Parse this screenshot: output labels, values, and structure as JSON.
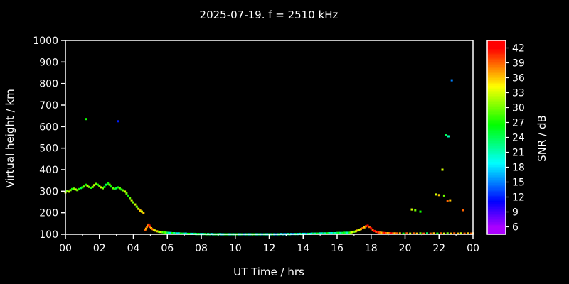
{
  "colors": {
    "background": "#000000",
    "text": "#ffffff",
    "frame": "#ffffff"
  },
  "chart_data": {
    "type": "scatter",
    "title": "2025-07-19. f = 2510 kHz",
    "xlabel": "UT Time / hrs",
    "ylabel": "Virtual height / km",
    "colorbar_label": "SNR / dB",
    "xlim": [
      0,
      24
    ],
    "ylim": [
      100,
      1000
    ],
    "grid": false,
    "legend": "colorbar-right",
    "xticks": {
      "values": [
        0,
        2,
        4,
        6,
        8,
        10,
        12,
        14,
        16,
        18,
        20,
        22,
        24
      ],
      "labels": [
        "00",
        "02",
        "04",
        "06",
        "08",
        "10",
        "12",
        "14",
        "16",
        "18",
        "20",
        "22",
        "00"
      ]
    },
    "yticks": [
      100,
      200,
      300,
      400,
      500,
      600,
      700,
      800,
      900,
      1000
    ],
    "colorbar_ticks": [
      6,
      9,
      12,
      15,
      18,
      21,
      24,
      27,
      30,
      33,
      36,
      39,
      42
    ],
    "colorbar_range": [
      4.5,
      43.5
    ],
    "snr_domain": [
      6,
      42
    ],
    "points": [
      [
        0.0,
        295,
        33
      ],
      [
        0.1,
        300,
        30
      ],
      [
        0.2,
        298,
        33
      ],
      [
        0.3,
        305,
        30
      ],
      [
        0.4,
        310,
        27
      ],
      [
        0.5,
        312,
        30
      ],
      [
        0.6,
        308,
        33
      ],
      [
        0.7,
        305,
        30
      ],
      [
        0.8,
        310,
        27
      ],
      [
        0.9,
        315,
        24
      ],
      [
        1.0,
        318,
        27
      ],
      [
        1.1,
        322,
        30
      ],
      [
        1.2,
        330,
        27
      ],
      [
        1.3,
        326,
        33
      ],
      [
        1.4,
        320,
        30
      ],
      [
        1.5,
        316,
        27
      ],
      [
        1.6,
        320,
        30
      ],
      [
        1.7,
        328,
        33
      ],
      [
        1.8,
        334,
        30
      ],
      [
        1.9,
        330,
        27
      ],
      [
        2.0,
        324,
        30
      ],
      [
        2.1,
        318,
        33
      ],
      [
        2.2,
        314,
        30
      ],
      [
        2.3,
        320,
        27
      ],
      [
        2.4,
        330,
        24
      ],
      [
        2.5,
        336,
        27
      ],
      [
        2.6,
        330,
        30
      ],
      [
        2.7,
        322,
        27
      ],
      [
        2.8,
        314,
        30
      ],
      [
        2.9,
        310,
        27
      ],
      [
        3.0,
        314,
        24
      ],
      [
        3.1,
        318,
        27
      ],
      [
        3.2,
        314,
        30
      ],
      [
        3.3,
        308,
        27
      ],
      [
        3.4,
        304,
        30
      ],
      [
        3.5,
        298,
        33
      ],
      [
        3.6,
        290,
        30
      ],
      [
        3.7,
        280,
        27
      ],
      [
        3.8,
        268,
        30
      ],
      [
        3.9,
        258,
        33
      ],
      [
        4.0,
        248,
        30
      ],
      [
        4.1,
        238,
        33
      ],
      [
        4.2,
        228,
        30
      ],
      [
        4.3,
        218,
        33
      ],
      [
        4.4,
        210,
        36
      ],
      [
        4.5,
        205,
        33
      ],
      [
        4.6,
        200,
        36
      ],
      [
        1.2,
        635,
        27
      ],
      [
        3.1,
        625,
        12
      ],
      [
        4.7,
        118,
        39
      ],
      [
        4.75,
        126,
        36
      ],
      [
        4.8,
        134,
        39
      ],
      [
        4.85,
        140,
        36
      ],
      [
        4.9,
        145,
        39
      ],
      [
        4.95,
        140,
        42
      ],
      [
        5.0,
        134,
        39
      ],
      [
        5.05,
        128,
        36
      ],
      [
        5.1,
        124,
        39
      ],
      [
        5.2,
        120,
        36
      ],
      [
        5.3,
        117,
        33
      ],
      [
        5.4,
        114,
        36
      ],
      [
        5.5,
        112,
        30
      ],
      [
        5.6,
        111,
        33
      ],
      [
        5.7,
        110,
        30
      ],
      [
        5.8,
        109,
        27
      ],
      [
        5.9,
        108,
        30
      ],
      [
        6.0,
        107,
        24
      ],
      [
        6.1,
        106,
        21
      ],
      [
        6.2,
        106,
        18
      ],
      [
        6.3,
        105,
        27
      ],
      [
        6.4,
        105,
        21
      ],
      [
        6.5,
        104,
        24
      ],
      [
        6.6,
        104,
        18
      ],
      [
        6.7,
        104,
        21
      ],
      [
        6.8,
        103,
        27
      ],
      [
        6.9,
        103,
        24
      ],
      [
        7.0,
        103,
        21
      ],
      [
        7.1,
        103,
        18
      ],
      [
        7.2,
        102,
        24
      ],
      [
        7.3,
        102,
        27
      ],
      [
        7.4,
        102,
        21
      ],
      [
        7.5,
        102,
        18
      ],
      [
        7.6,
        102,
        24
      ],
      [
        7.7,
        101,
        21
      ],
      [
        7.8,
        101,
        27
      ],
      [
        7.9,
        101,
        24
      ],
      [
        8.0,
        101,
        18
      ],
      [
        8.1,
        101,
        21
      ],
      [
        8.2,
        101,
        24
      ],
      [
        8.3,
        100,
        27
      ],
      [
        8.4,
        101,
        21
      ],
      [
        8.5,
        100,
        24
      ],
      [
        8.6,
        101,
        18
      ],
      [
        8.7,
        100,
        21
      ],
      [
        8.8,
        100,
        24
      ],
      [
        8.9,
        100,
        27
      ],
      [
        9.0,
        100,
        21
      ],
      [
        9.1,
        101,
        24
      ],
      [
        9.2,
        100,
        18
      ],
      [
        9.3,
        100,
        21
      ],
      [
        9.4,
        100,
        24
      ],
      [
        9.5,
        100,
        27
      ],
      [
        9.6,
        100,
        21
      ],
      [
        9.7,
        100,
        18
      ],
      [
        9.8,
        100,
        24
      ],
      [
        9.9,
        100,
        21
      ],
      [
        10.0,
        100,
        24
      ],
      [
        10.1,
        100,
        27
      ],
      [
        10.2,
        100,
        18
      ],
      [
        10.3,
        100,
        21
      ],
      [
        10.4,
        100,
        24
      ],
      [
        10.5,
        100,
        15
      ],
      [
        10.6,
        100,
        21
      ],
      [
        10.7,
        100,
        24
      ],
      [
        10.8,
        100,
        18
      ],
      [
        10.9,
        100,
        21
      ],
      [
        11.0,
        100,
        24
      ],
      [
        11.1,
        100,
        27
      ],
      [
        11.2,
        100,
        21
      ],
      [
        11.3,
        100,
        18
      ],
      [
        11.4,
        100,
        24
      ],
      [
        11.5,
        100,
        21
      ],
      [
        11.6,
        100,
        15
      ],
      [
        11.7,
        100,
        24
      ],
      [
        11.8,
        100,
        21
      ],
      [
        11.9,
        100,
        18
      ],
      [
        12.0,
        100,
        24
      ],
      [
        12.1,
        100,
        21
      ],
      [
        12.2,
        100,
        27
      ],
      [
        12.3,
        100,
        18
      ],
      [
        12.4,
        100,
        15
      ],
      [
        12.5,
        100,
        21
      ],
      [
        12.6,
        100,
        24
      ],
      [
        12.7,
        101,
        18
      ],
      [
        12.8,
        100,
        21
      ],
      [
        12.9,
        101,
        15
      ],
      [
        13.0,
        100,
        18
      ],
      [
        13.1,
        101,
        21
      ],
      [
        13.2,
        100,
        24
      ],
      [
        13.3,
        101,
        18
      ],
      [
        13.4,
        101,
        15
      ],
      [
        13.5,
        101,
        21
      ],
      [
        13.6,
        101,
        24
      ],
      [
        13.7,
        101,
        18
      ],
      [
        13.8,
        102,
        21
      ],
      [
        13.9,
        101,
        24
      ],
      [
        14.0,
        102,
        18
      ],
      [
        14.1,
        102,
        21
      ],
      [
        14.2,
        102,
        15
      ],
      [
        14.3,
        102,
        24
      ],
      [
        14.4,
        102,
        21
      ],
      [
        14.5,
        103,
        18
      ],
      [
        14.6,
        103,
        24
      ],
      [
        14.7,
        103,
        21
      ],
      [
        14.8,
        103,
        27
      ],
      [
        14.9,
        103,
        24
      ],
      [
        15.0,
        104,
        21
      ],
      [
        15.1,
        104,
        18
      ],
      [
        15.2,
        104,
        24
      ],
      [
        15.3,
        104,
        21
      ],
      [
        15.4,
        104,
        27
      ],
      [
        15.5,
        105,
        24
      ],
      [
        15.6,
        105,
        21
      ],
      [
        15.7,
        105,
        18
      ],
      [
        15.8,
        105,
        24
      ],
      [
        15.9,
        105,
        21
      ],
      [
        16.0,
        106,
        24
      ],
      [
        16.1,
        106,
        27
      ],
      [
        16.2,
        106,
        21
      ],
      [
        16.3,
        106,
        24
      ],
      [
        16.4,
        107,
        27
      ],
      [
        16.5,
        107,
        24
      ],
      [
        16.6,
        107,
        21
      ],
      [
        16.7,
        107,
        27
      ],
      [
        16.8,
        108,
        30
      ],
      [
        16.9,
        110,
        33
      ],
      [
        17.0,
        112,
        30
      ],
      [
        17.1,
        114,
        33
      ],
      [
        17.2,
        117,
        36
      ],
      [
        17.3,
        120,
        33
      ],
      [
        17.4,
        124,
        36
      ],
      [
        17.5,
        128,
        39
      ],
      [
        17.6,
        132,
        36
      ],
      [
        17.7,
        137,
        39
      ],
      [
        17.8,
        140,
        42
      ],
      [
        17.9,
        134,
        39
      ],
      [
        18.0,
        127,
        42
      ],
      [
        18.1,
        120,
        39
      ],
      [
        18.2,
        115,
        42
      ],
      [
        18.3,
        112,
        39
      ],
      [
        18.4,
        110,
        42
      ],
      [
        18.5,
        108,
        39
      ],
      [
        18.6,
        107,
        36
      ],
      [
        18.7,
        106,
        39
      ],
      [
        18.8,
        106,
        42
      ],
      [
        18.9,
        105,
        39
      ],
      [
        19.0,
        105,
        36
      ],
      [
        19.1,
        105,
        39
      ],
      [
        19.2,
        104,
        42
      ],
      [
        19.3,
        104,
        39
      ],
      [
        19.4,
        104,
        36
      ],
      [
        19.5,
        104,
        39
      ],
      [
        19.7,
        104,
        36
      ],
      [
        19.9,
        103,
        27
      ],
      [
        20.1,
        104,
        39
      ],
      [
        20.3,
        103,
        33
      ],
      [
        20.5,
        104,
        39
      ],
      [
        20.7,
        103,
        36
      ],
      [
        20.9,
        104,
        30
      ],
      [
        21.1,
        103,
        39
      ],
      [
        21.3,
        104,
        24
      ],
      [
        21.5,
        103,
        39
      ],
      [
        21.7,
        104,
        36
      ],
      [
        21.9,
        103,
        27
      ],
      [
        22.1,
        104,
        39
      ],
      [
        22.3,
        103,
        33
      ],
      [
        22.5,
        104,
        30
      ],
      [
        22.7,
        103,
        36
      ],
      [
        22.9,
        104,
        39
      ],
      [
        23.1,
        103,
        36
      ],
      [
        23.3,
        104,
        33
      ],
      [
        23.5,
        103,
        39
      ],
      [
        23.7,
        104,
        36
      ],
      [
        23.9,
        103,
        39
      ],
      [
        24.0,
        104,
        36
      ],
      [
        20.4,
        215,
        33
      ],
      [
        20.6,
        212,
        30
      ],
      [
        20.9,
        205,
        27
      ],
      [
        21.8,
        285,
        33
      ],
      [
        22.0,
        282,
        36
      ],
      [
        22.3,
        280,
        30
      ],
      [
        22.2,
        400,
        33
      ],
      [
        22.4,
        560,
        24
      ],
      [
        22.55,
        555,
        21
      ],
      [
        22.5,
        255,
        39
      ],
      [
        22.65,
        258,
        36
      ],
      [
        22.75,
        815,
        15
      ],
      [
        23.4,
        212,
        39
      ]
    ]
  }
}
